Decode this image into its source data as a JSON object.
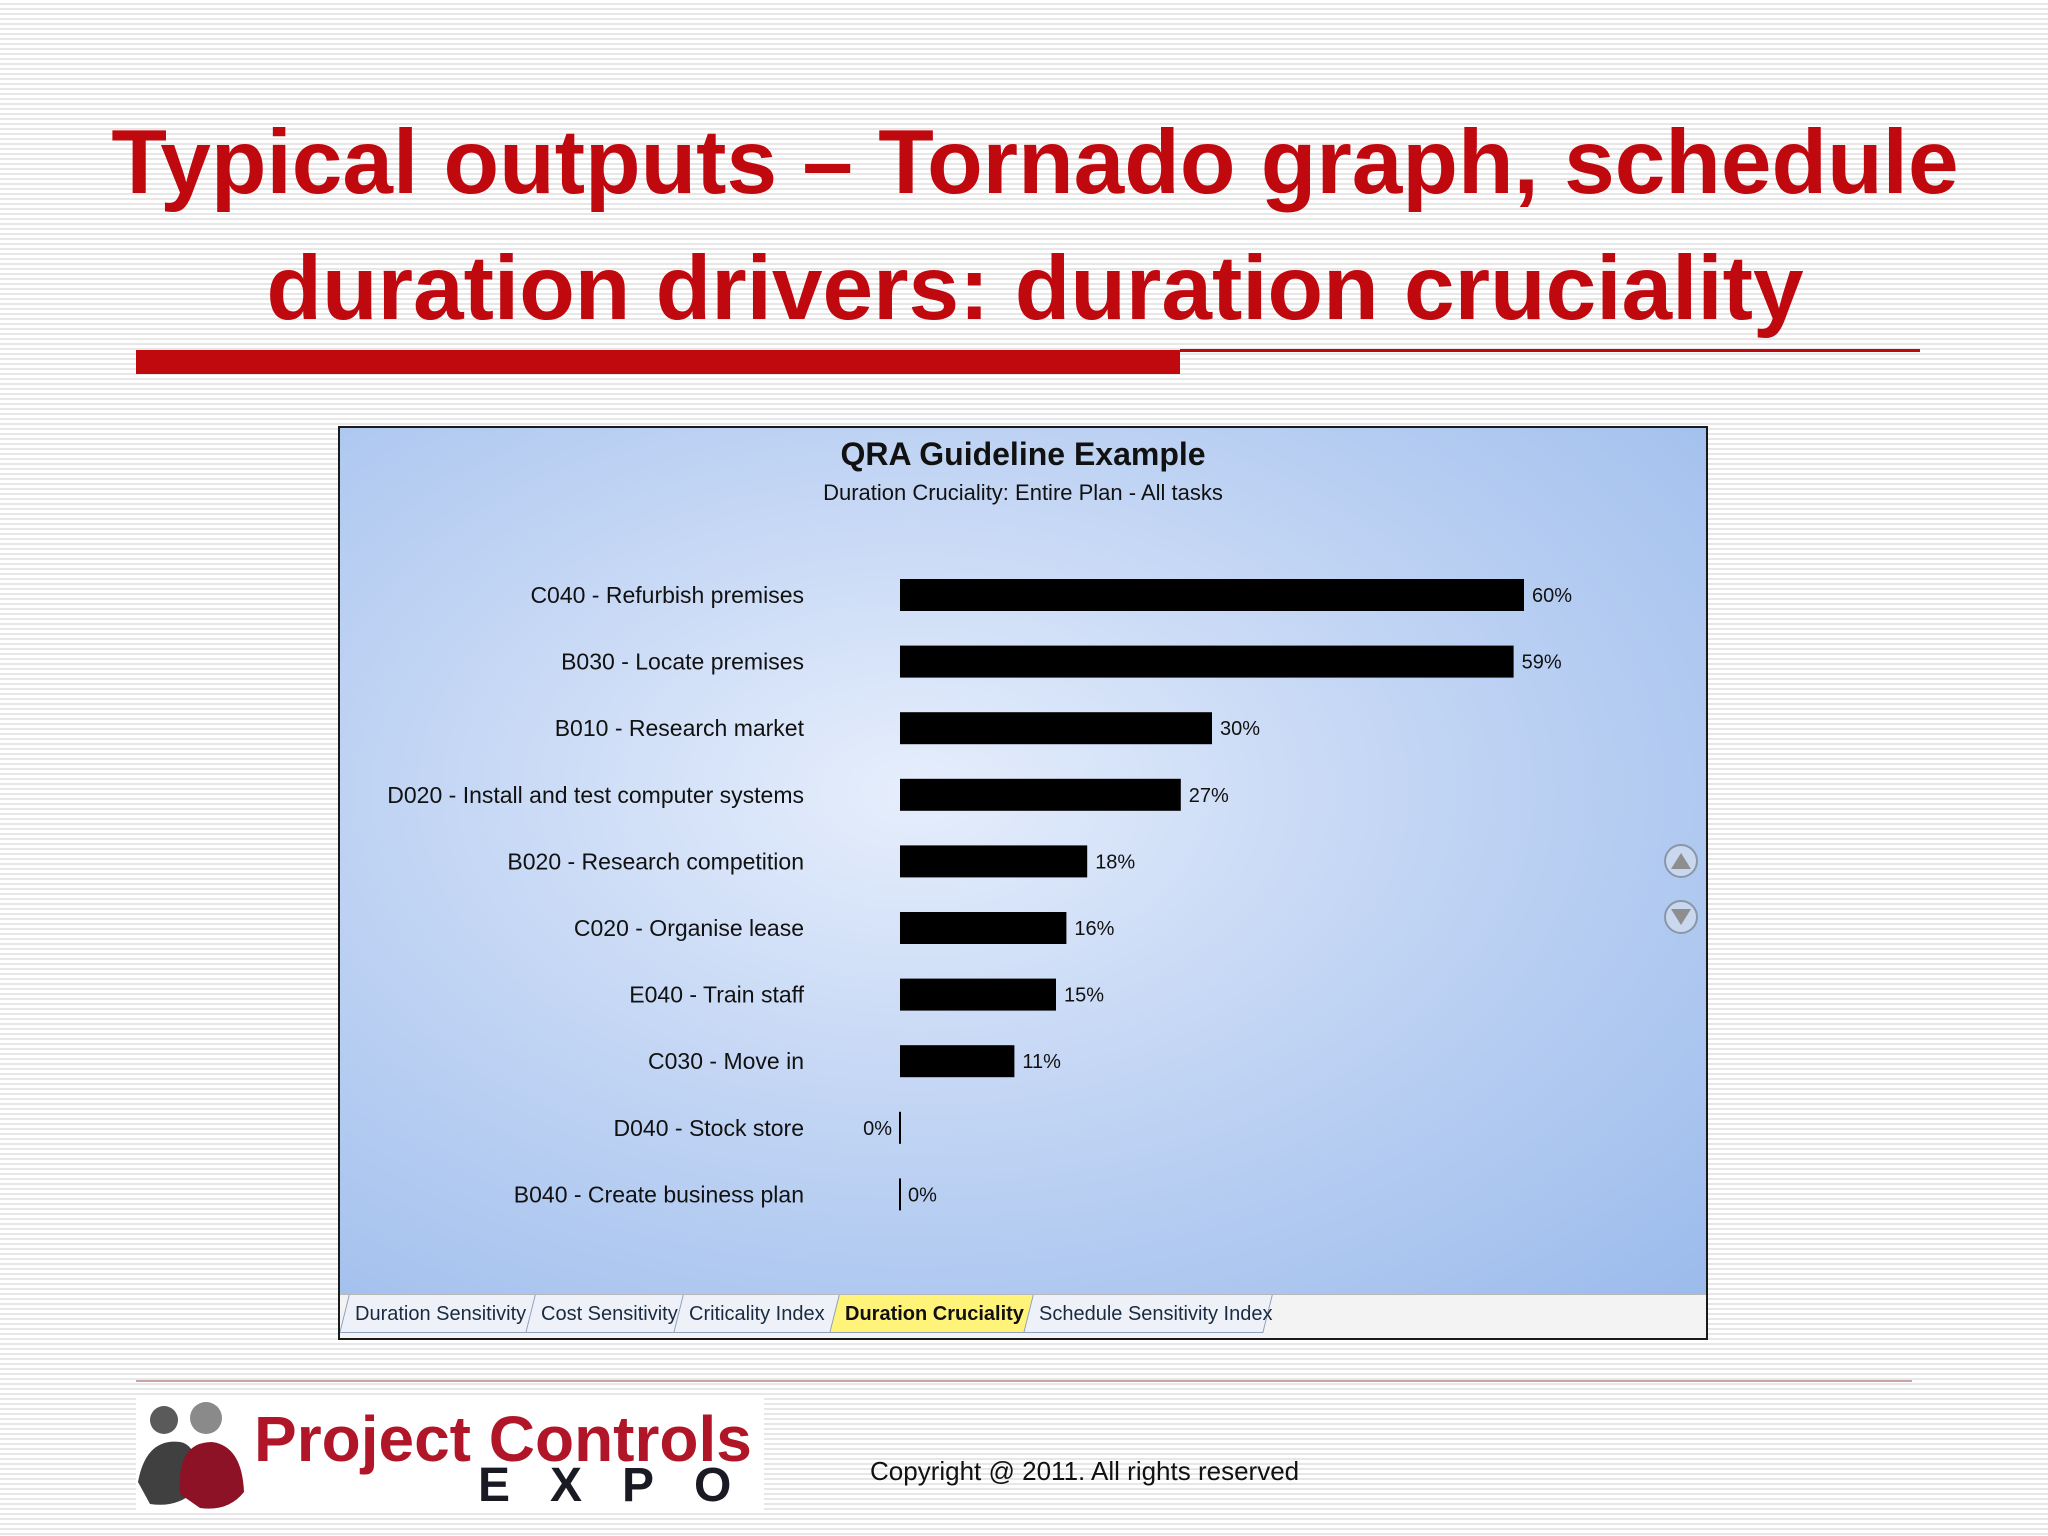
{
  "slide": {
    "title": "Typical outputs – Tornado graph, schedule duration drivers: duration cruciality",
    "copyright": "Copyright @ 2011. All rights reserved"
  },
  "logo": {
    "name": "Project Controls",
    "sub": "EXPO"
  },
  "tabs": [
    {
      "label": "Duration Sensitivity",
      "active": false
    },
    {
      "label": "Cost Sensitivity",
      "active": false
    },
    {
      "label": "Criticality Index",
      "active": false
    },
    {
      "label": "Duration Cruciality",
      "active": true
    },
    {
      "label": "Schedule Sensitivity Index",
      "active": false
    }
  ],
  "chart_data": {
    "type": "bar",
    "orientation": "horizontal",
    "title": "QRA Guideline Example",
    "subtitle": "Duration Cruciality: Entire Plan - All tasks",
    "categories": [
      "C040 - Refurbish premises",
      "B030 - Locate premises",
      "B010 - Research market",
      "D020 - Install and test computer systems",
      "B020 - Research competition",
      "C020 - Organise lease",
      "E040 - Train staff",
      "C030 - Move in",
      "D040 - Stock store",
      "B040 - Create business plan"
    ],
    "values": [
      60,
      59,
      30,
      27,
      18,
      16,
      15,
      11,
      0,
      0
    ],
    "data_labels": [
      "60%",
      "59%",
      "30%",
      "27%",
      "18%",
      "16%",
      "15%",
      "11%",
      "0%",
      "0%"
    ],
    "bar_color": "#000000",
    "grid": false,
    "legend": "none"
  }
}
